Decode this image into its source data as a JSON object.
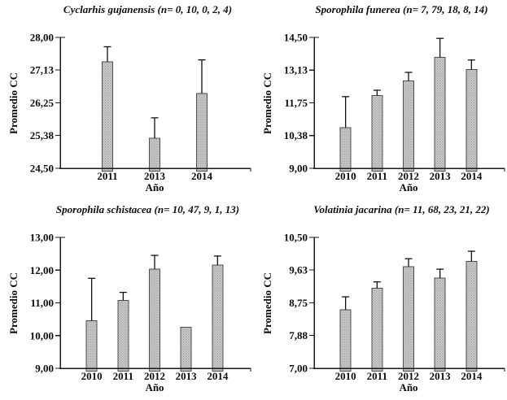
{
  "style": {
    "background": "#ffffff",
    "bar_fill": "#c6c6c6",
    "bar_stipple": "#9f9f9f",
    "bar_stroke": "#4d4d4d",
    "axis_color": "#1a1a1a",
    "error_color": "#111111",
    "text_color": "#000000"
  },
  "chart_data": [
    {
      "type": "bar",
      "title": "Cyclarhis gujanensis (n= 0, 10, 0, 2, 4)",
      "xlabel": "Año",
      "ylabel": "Promedio CC",
      "categories": [
        "2011",
        "2013",
        "2014"
      ],
      "values": [
        27.35,
        25.3,
        26.5
      ],
      "errors_plus": [
        0.4,
        0.55,
        0.9
      ],
      "ylim": [
        24.5,
        28.0
      ],
      "ytick_values": [
        24.5,
        25.38,
        26.25,
        27.13,
        28.0
      ],
      "ytick_labels": [
        "24,50",
        "25,38",
        "26,25",
        "27,13",
        "28,00"
      ],
      "grid": false,
      "legend": "none"
    },
    {
      "type": "bar",
      "title": "Sporophila funerea (n= 7, 79, 18, 8, 14)",
      "xlabel": "Año",
      "ylabel": "Promedio CC",
      "categories": [
        "2010",
        "2011",
        "2012",
        "2013",
        "2014"
      ],
      "values": [
        10.7,
        12.06,
        12.67,
        13.66,
        13.15
      ],
      "errors_plus": [
        1.31,
        0.22,
        0.36,
        0.8,
        0.4
      ],
      "ylim": [
        9.0,
        14.5
      ],
      "ytick_values": [
        9.0,
        10.38,
        11.75,
        13.13,
        14.5
      ],
      "ytick_labels": [
        "9,00",
        "10,38",
        "11,75",
        "13,13",
        "14,50"
      ],
      "grid": false,
      "legend": "none"
    },
    {
      "type": "bar",
      "title": "Sporophila schistacea (n= 10, 47, 9, 1, 13)",
      "xlabel": "Año",
      "ylabel": "Promedio CC",
      "categories": [
        "2010",
        "2011",
        "2012",
        "2013",
        "2014"
      ],
      "values": [
        10.45,
        11.08,
        12.03,
        10.25,
        12.15
      ],
      "errors_plus": [
        1.3,
        0.24,
        0.42,
        0,
        0.28
      ],
      "ylim": [
        9.0,
        13.0
      ],
      "ytick_values": [
        9.0,
        10.0,
        11.0,
        12.0,
        13.0
      ],
      "ytick_labels": [
        "9,00",
        "10,00",
        "11,00",
        "12,00",
        "13,00"
      ],
      "grid": false,
      "legend": "none"
    },
    {
      "type": "bar",
      "title": "Volatinia jacarina (n= 11, 68, 23, 21, 22)",
      "xlabel": "Año",
      "ylabel": "Promedio CC",
      "categories": [
        "2010",
        "2011",
        "2012",
        "2013",
        "2014"
      ],
      "values": [
        8.57,
        9.14,
        9.72,
        9.41,
        9.86
      ],
      "errors_plus": [
        0.34,
        0.17,
        0.21,
        0.24,
        0.27
      ],
      "ylim": [
        7.0,
        10.5
      ],
      "ytick_values": [
        7.0,
        7.88,
        8.75,
        9.63,
        10.5
      ],
      "ytick_labels": [
        "7,00",
        "7,88",
        "8,75",
        "9,63",
        "10,50"
      ],
      "grid": false,
      "legend": "none"
    }
  ]
}
